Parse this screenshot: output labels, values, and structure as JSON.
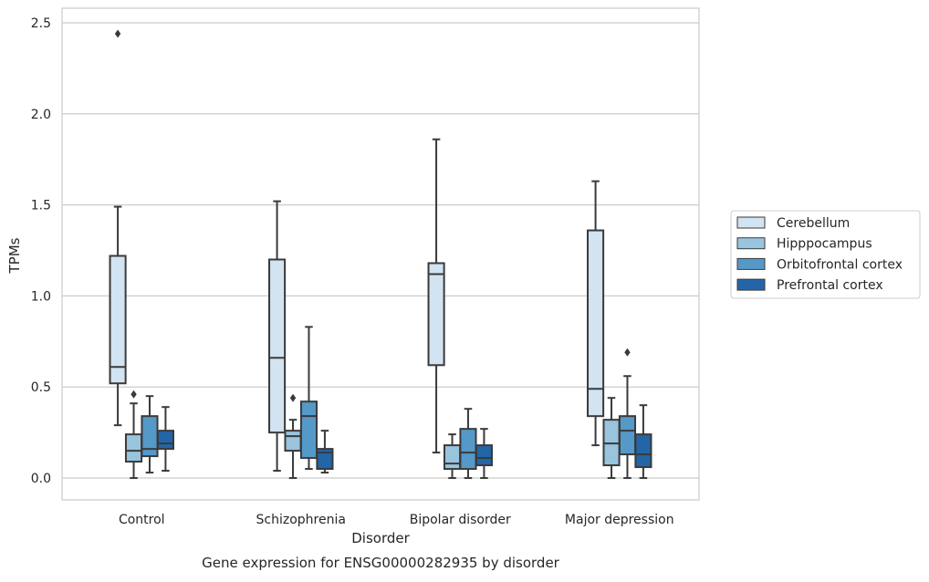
{
  "chart_data": {
    "type": "box",
    "caption": "Gene expression for ENSG00000282935 by disorder",
    "xlabel": "Disorder",
    "ylabel": "TPMs",
    "categories": [
      "Control",
      "Schizophrenia",
      "Bipolar disorder",
      "Major depression"
    ],
    "ylim": [
      -0.12,
      2.58
    ],
    "yticks": [
      {
        "value": 0.0,
        "label": "0.0"
      },
      {
        "value": 0.5,
        "label": "0.5"
      },
      {
        "value": 1.0,
        "label": "1.0"
      },
      {
        "value": 1.5,
        "label": "1.5"
      },
      {
        "value": 2.0,
        "label": "2.0"
      },
      {
        "value": 2.5,
        "label": "2.5"
      }
    ],
    "grid": "horizontal",
    "legend_placement": "right",
    "series": [
      {
        "name": "Cerebellum",
        "color": "#d2e3f1",
        "boxes": [
          {
            "whislo": 0.29,
            "q1": 0.52,
            "med": 0.61,
            "q3": 1.22,
            "whishi": 1.49,
            "fliers": [
              2.44
            ]
          },
          {
            "whislo": 0.04,
            "q1": 0.25,
            "med": 0.66,
            "q3": 1.2,
            "whishi": 1.52,
            "fliers": []
          },
          {
            "whislo": 0.14,
            "q1": 0.62,
            "med": 1.12,
            "q3": 1.18,
            "whishi": 1.86,
            "fliers": []
          },
          {
            "whislo": 0.18,
            "q1": 0.34,
            "med": 0.49,
            "q3": 1.36,
            "whishi": 1.63,
            "fliers": []
          }
        ]
      },
      {
        "name": "Hipppocampus",
        "color": "#99c4de",
        "boxes": [
          {
            "whislo": 0.0,
            "q1": 0.09,
            "med": 0.15,
            "q3": 0.24,
            "whishi": 0.41,
            "fliers": [
              0.46
            ]
          },
          {
            "whislo": 0.0,
            "q1": 0.15,
            "med": 0.23,
            "q3": 0.26,
            "whishi": 0.32,
            "fliers": [
              0.44
            ]
          },
          {
            "whislo": 0.0,
            "q1": 0.05,
            "med": 0.08,
            "q3": 0.18,
            "whishi": 0.24,
            "fliers": []
          },
          {
            "whislo": 0.0,
            "q1": 0.07,
            "med": 0.19,
            "q3": 0.32,
            "whishi": 0.44,
            "fliers": []
          }
        ]
      },
      {
        "name": "Orbitofrontal cortex",
        "color": "#5599c8",
        "boxes": [
          {
            "whislo": 0.03,
            "q1": 0.12,
            "med": 0.16,
            "q3": 0.34,
            "whishi": 0.45,
            "fliers": []
          },
          {
            "whislo": 0.05,
            "q1": 0.11,
            "med": 0.34,
            "q3": 0.42,
            "whishi": 0.83,
            "fliers": []
          },
          {
            "whislo": 0.0,
            "q1": 0.05,
            "med": 0.14,
            "q3": 0.27,
            "whishi": 0.38,
            "fliers": []
          },
          {
            "whislo": 0.0,
            "q1": 0.13,
            "med": 0.26,
            "q3": 0.34,
            "whishi": 0.56,
            "fliers": [
              0.69
            ]
          }
        ]
      },
      {
        "name": "Prefrontal cortex",
        "color": "#2366a8",
        "boxes": [
          {
            "whislo": 0.04,
            "q1": 0.16,
            "med": 0.19,
            "q3": 0.26,
            "whishi": 0.39,
            "fliers": []
          },
          {
            "whislo": 0.03,
            "q1": 0.05,
            "med": 0.14,
            "q3": 0.16,
            "whishi": 0.26,
            "fliers": []
          },
          {
            "whislo": 0.0,
            "q1": 0.07,
            "med": 0.11,
            "q3": 0.18,
            "whishi": 0.27,
            "fliers": []
          },
          {
            "whislo": 0.0,
            "q1": 0.06,
            "med": 0.13,
            "q3": 0.24,
            "whishi": 0.4,
            "fliers": []
          }
        ]
      }
    ]
  }
}
